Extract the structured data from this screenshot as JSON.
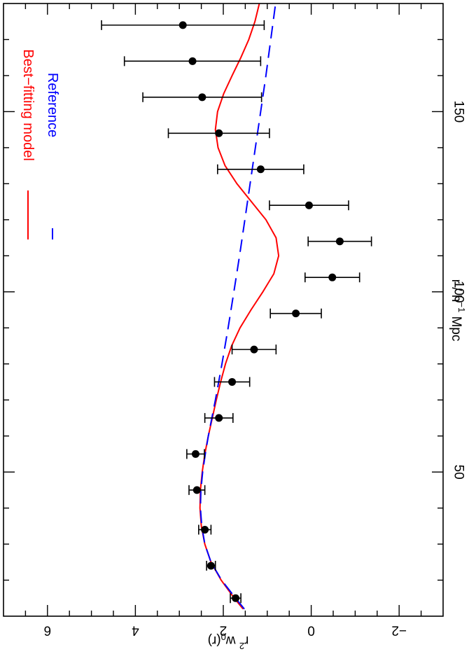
{
  "chart_data": {
    "type": "scatter",
    "orientation": "rotated-90-clockwise",
    "xlabel": "r / h⁻¹ Mpc",
    "xlabel_parts": {
      "main": "r  /  h",
      "sup": "−1",
      "tail": " Mpc"
    },
    "ylabel_parts": {
      "base": "r",
      "sup": "2",
      "mid": " w",
      "sub": "0",
      "tail": "(r)"
    },
    "xlim": [
      10,
      180
    ],
    "ylim": [
      -3,
      7
    ],
    "x_ticks": [
      50,
      100,
      150
    ],
    "x_tick_labels": [
      "50",
      "100",
      "150"
    ],
    "y_ticks": [
      -2,
      0,
      2,
      4,
      6
    ],
    "y_tick_labels": [
      "−2",
      "0",
      "2",
      "4",
      "6"
    ],
    "legend_position": "top-left",
    "series": [
      {
        "name": "Best−fitting model",
        "kind": "line",
        "color": "#ff0000",
        "dash": "solid",
        "x": [
          12,
          15,
          20,
          25,
          30,
          35,
          40,
          45,
          50,
          55,
          60,
          65,
          70,
          75,
          80,
          85,
          90,
          95,
          100,
          105,
          110,
          115,
          120,
          125,
          130,
          135,
          140,
          145,
          150,
          155,
          160,
          165,
          170,
          175,
          180
        ],
        "y": [
          1.55,
          1.75,
          2.05,
          2.28,
          2.42,
          2.5,
          2.53,
          2.52,
          2.48,
          2.42,
          2.34,
          2.25,
          2.16,
          2.06,
          1.95,
          1.81,
          1.62,
          1.37,
          1.1,
          0.85,
          0.74,
          0.8,
          1.03,
          1.36,
          1.69,
          1.96,
          2.12,
          2.18,
          2.13,
          1.99,
          1.8,
          1.6,
          1.42,
          1.28,
          1.18
        ]
      },
      {
        "name": "Reference",
        "kind": "line",
        "color": "#0000ff",
        "dash": "dashed",
        "x": [
          12,
          15,
          20,
          25,
          30,
          35,
          40,
          45,
          50,
          55,
          60,
          70,
          80,
          90,
          100,
          110,
          120,
          130,
          140,
          150,
          160,
          170,
          180
        ],
        "y": [
          1.52,
          1.72,
          2.04,
          2.28,
          2.42,
          2.49,
          2.52,
          2.51,
          2.47,
          2.41,
          2.34,
          2.18,
          2.03,
          1.89,
          1.76,
          1.63,
          1.51,
          1.39,
          1.27,
          1.15,
          1.03,
          0.92,
          0.81
        ]
      },
      {
        "name": "",
        "kind": "points",
        "color": "#000000",
        "x": [
          15,
          24,
          34,
          45,
          55,
          65,
          75,
          84,
          94,
          104,
          114,
          124,
          134,
          144,
          154,
          164,
          174
        ],
        "y": [
          1.72,
          2.28,
          2.42,
          2.6,
          2.63,
          2.1,
          1.8,
          1.3,
          0.35,
          -0.48,
          -0.65,
          0.05,
          1.15,
          2.1,
          2.48,
          2.7,
          2.92
        ],
        "err": [
          0.12,
          0.1,
          0.14,
          0.18,
          0.2,
          0.32,
          0.4,
          0.5,
          0.58,
          0.62,
          0.72,
          0.9,
          0.98,
          1.15,
          1.35,
          1.55,
          1.85
        ]
      }
    ]
  }
}
